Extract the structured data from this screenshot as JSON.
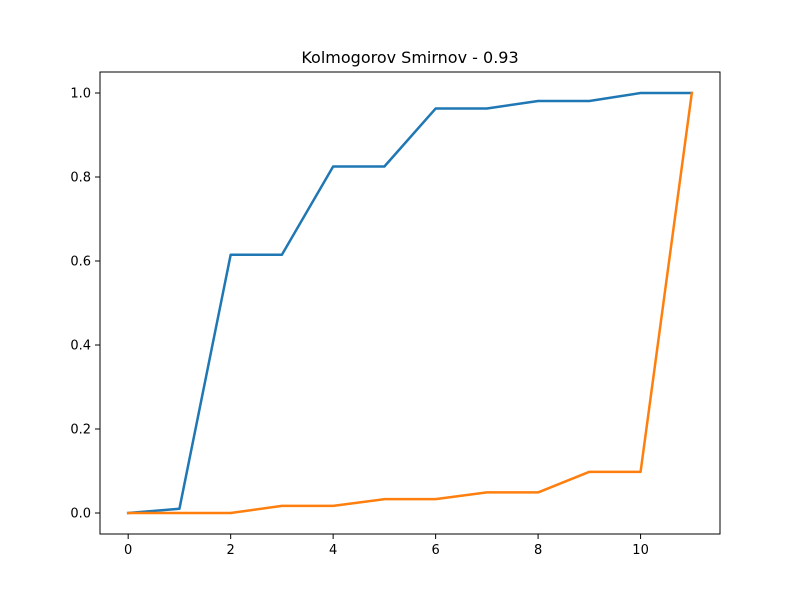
{
  "chart_data": {
    "type": "line",
    "title": "Kolmogorov Smirnov - 0.93",
    "xlabel": "",
    "ylabel": "",
    "xlim": [
      -0.55,
      11.55
    ],
    "ylim": [
      -0.05,
      1.05
    ],
    "x_ticks": [
      0,
      2,
      4,
      6,
      8,
      10
    ],
    "x_tick_labels": [
      "0",
      "2",
      "4",
      "6",
      "8",
      "10"
    ],
    "y_ticks": [
      0.0,
      0.2,
      0.4,
      0.6,
      0.8,
      1.0
    ],
    "y_tick_labels": [
      "0.0",
      "0.2",
      "0.4",
      "0.6",
      "0.8",
      "1.0"
    ],
    "grid": false,
    "legend": "none",
    "x": [
      0,
      1,
      2,
      3,
      4,
      5,
      6,
      7,
      8,
      9,
      10,
      11
    ],
    "series": [
      {
        "color": "#1f77b4",
        "values": [
          0.0,
          0.01,
          0.615,
          0.615,
          0.825,
          0.825,
          0.963,
          0.963,
          0.981,
          0.981,
          1.0,
          1.0
        ]
      },
      {
        "color": "#ff7f0e",
        "values": [
          0.0,
          0.0,
          0.0,
          0.017,
          0.017,
          0.033,
          0.033,
          0.049,
          0.049,
          0.098,
          0.098,
          1.0
        ]
      }
    ]
  }
}
